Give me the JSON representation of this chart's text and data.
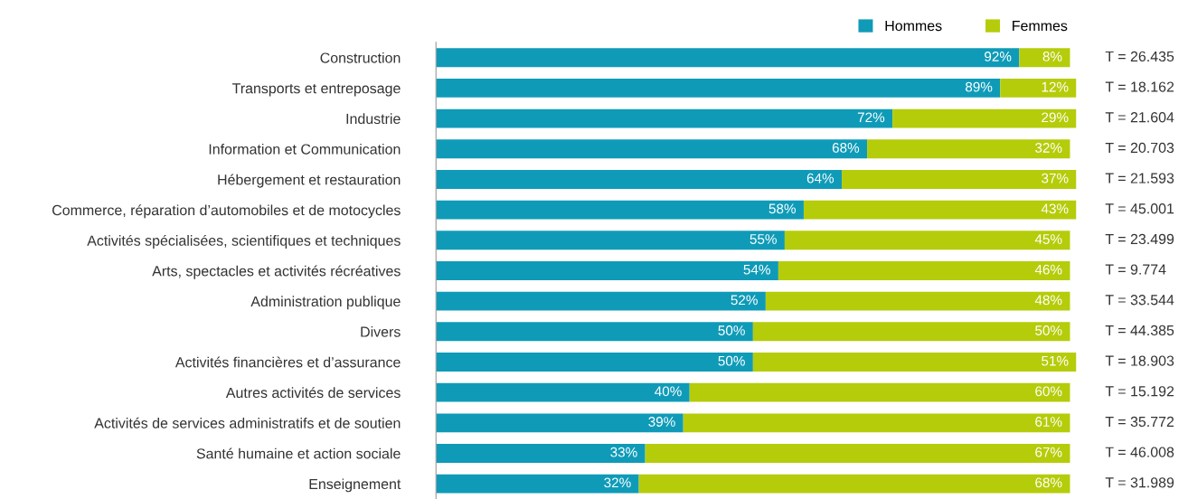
{
  "chart_data": {
    "type": "bar",
    "orientation": "horizontal",
    "stacked": true,
    "legend": "top right",
    "grid": false,
    "categories": [
      "Construction",
      "Transports et entreposage",
      "Industrie",
      "Information et Communication",
      "Hébergement et restauration",
      "Commerce, réparation d’automobiles et de motocycles",
      "Activités spécialisées, scientifiques et techniques",
      "Arts, spectacles et activités récréatives",
      "Administration publique",
      "Divers",
      "Activités financières et d’assurance",
      "Autres activités de services",
      "Activités de services administratifs et de soutien",
      "Santé humaine et action sociale",
      "Enseignement"
    ],
    "series": [
      {
        "name": "Hommes",
        "color": "#0f9bb8",
        "values": [
          92,
          89,
          72,
          68,
          64,
          58,
          55,
          54,
          52,
          50,
          50,
          40,
          39,
          33,
          32
        ],
        "value_labels": [
          "92%",
          "89%",
          "72%",
          "68%",
          "64%",
          "58%",
          "55%",
          "54%",
          "52%",
          "50%",
          "50%",
          "40%",
          "39%",
          "33%",
          "32%"
        ]
      },
      {
        "name": "Femmes",
        "color": "#b5cc0a",
        "values": [
          8,
          12,
          29,
          32,
          37,
          43,
          45,
          46,
          48,
          50,
          51,
          60,
          61,
          67,
          68
        ],
        "value_labels": [
          "8%",
          "12%",
          "29%",
          "32%",
          "37%",
          "43%",
          "45%",
          "46%",
          "48%",
          "50%",
          "51%",
          "60%",
          "61%",
          "67%",
          "68%"
        ]
      }
    ],
    "annotations": [
      "T = 26.435",
      "T = 18.162",
      "T = 21.604",
      "T = 20.703",
      "T = 21.593",
      "T = 45.001",
      "T = 23.499",
      "T = 9.774",
      "T = 33.544",
      "T = 44.385",
      "T = 18.903",
      "T = 15.192",
      "T = 35.772",
      "T = 46.008",
      "T = 31.989"
    ]
  }
}
